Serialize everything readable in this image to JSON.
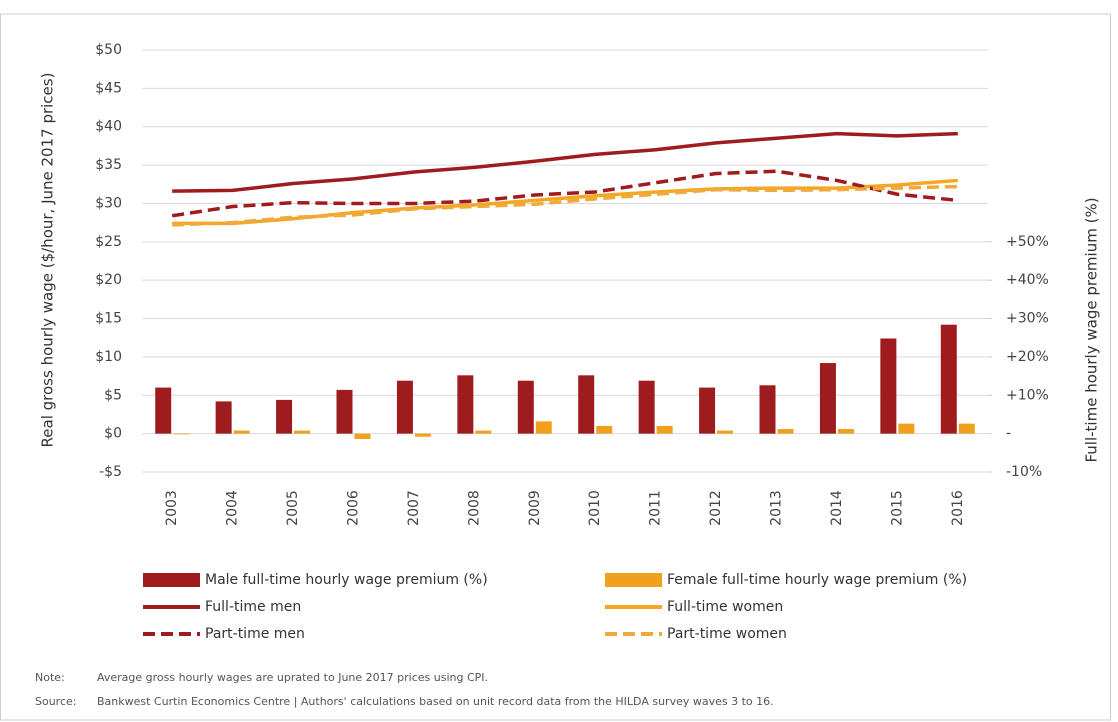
{
  "chart_data": {
    "type": "combo",
    "y_label": "Real gross hourly wage ($/hour, June 2017 prices)",
    "y2_label": "Full-time hourly wage premium (%)",
    "categories": [
      "2003",
      "2004",
      "2005",
      "2006",
      "2007",
      "2008",
      "2009",
      "2010",
      "2011",
      "2012",
      "2013",
      "2014",
      "2015",
      "2016"
    ],
    "ylim": [
      -5,
      50
    ],
    "yticks": [
      {
        "value": -5,
        "label": "-$5"
      },
      {
        "value": 0,
        "label": "$0"
      },
      {
        "value": 5,
        "label": "$5"
      },
      {
        "value": 10,
        "label": "$10"
      },
      {
        "value": 15,
        "label": "$15"
      },
      {
        "value": 20,
        "label": "$20"
      },
      {
        "value": 25,
        "label": "$25"
      },
      {
        "value": 30,
        "label": "$30"
      },
      {
        "value": 35,
        "label": "$35"
      },
      {
        "value": 40,
        "label": "$40"
      },
      {
        "value": 45,
        "label": "$45"
      },
      {
        "value": 50,
        "label": "$50"
      }
    ],
    "y2lim": [
      -10,
      100
    ],
    "y2ticks": [
      {
        "value": -10,
        "label": "-10%"
      },
      {
        "value": 0,
        "label": "-"
      },
      {
        "value": 10,
        "label": "+10%"
      },
      {
        "value": 20,
        "label": "+20%"
      },
      {
        "value": 30,
        "label": "+30%"
      },
      {
        "value": 40,
        "label": "+40%"
      },
      {
        "value": 50,
        "label": "+50%"
      }
    ],
    "grid": true,
    "series": [
      {
        "name": "Male full-time hourly wage premium (%)",
        "kind": "bar",
        "axis": "y2",
        "color": "#9e1b1e",
        "values": [
          12,
          8.4,
          8.8,
          11.4,
          13.8,
          15.2,
          13.8,
          15.2,
          13.8,
          12,
          12.6,
          18.4,
          24.8,
          28.4
        ]
      },
      {
        "name": "Female full-time hourly wage premium (%)",
        "kind": "bar",
        "axis": "y2",
        "color": "#f0a01c",
        "values": [
          -0.2,
          0.8,
          0.8,
          -1.4,
          -0.8,
          0.8,
          3.2,
          2,
          2,
          0.8,
          1.2,
          1.2,
          2.6,
          2.6
        ]
      },
      {
        "name": "Full-time men",
        "kind": "line",
        "dashed": false,
        "color": "#9e1b1e",
        "values": [
          31.6,
          31.7,
          32.6,
          33.2,
          34.1,
          34.7,
          35.5,
          36.4,
          37.0,
          37.9,
          38.5,
          39.1,
          38.8,
          39.1
        ]
      },
      {
        "name": "Full-time women",
        "kind": "line",
        "dashed": false,
        "color": "#f5a623",
        "values": [
          27.4,
          27.4,
          28.0,
          28.8,
          29.4,
          29.8,
          30.4,
          31.0,
          31.5,
          31.9,
          32.0,
          32.0,
          32.4,
          33.0
        ]
      },
      {
        "name": "Part-time men",
        "kind": "line",
        "dashed": true,
        "color": "#9e1b1e",
        "values": [
          28.4,
          29.6,
          30.1,
          30.0,
          30.0,
          30.3,
          31.1,
          31.5,
          32.7,
          33.9,
          34.2,
          33.0,
          31.2,
          30.4
        ]
      },
      {
        "name": "Part-time women",
        "kind": "line",
        "dashed": true,
        "color": "#eeaa3a",
        "values": [
          27.2,
          27.5,
          28.2,
          28.5,
          29.3,
          29.6,
          29.9,
          30.6,
          31.2,
          31.8,
          31.7,
          31.8,
          32.0,
          32.2
        ]
      }
    ],
    "footnotes": [
      {
        "label": "Note:",
        "text": "Average gross hourly wages are uprated to June 2017 prices using CPI."
      },
      {
        "label": "Source:",
        "text": "Bankwest Curtin Economics Centre | Authors' calculations based on unit record data from the HILDA survey waves 3 to 16."
      }
    ]
  }
}
